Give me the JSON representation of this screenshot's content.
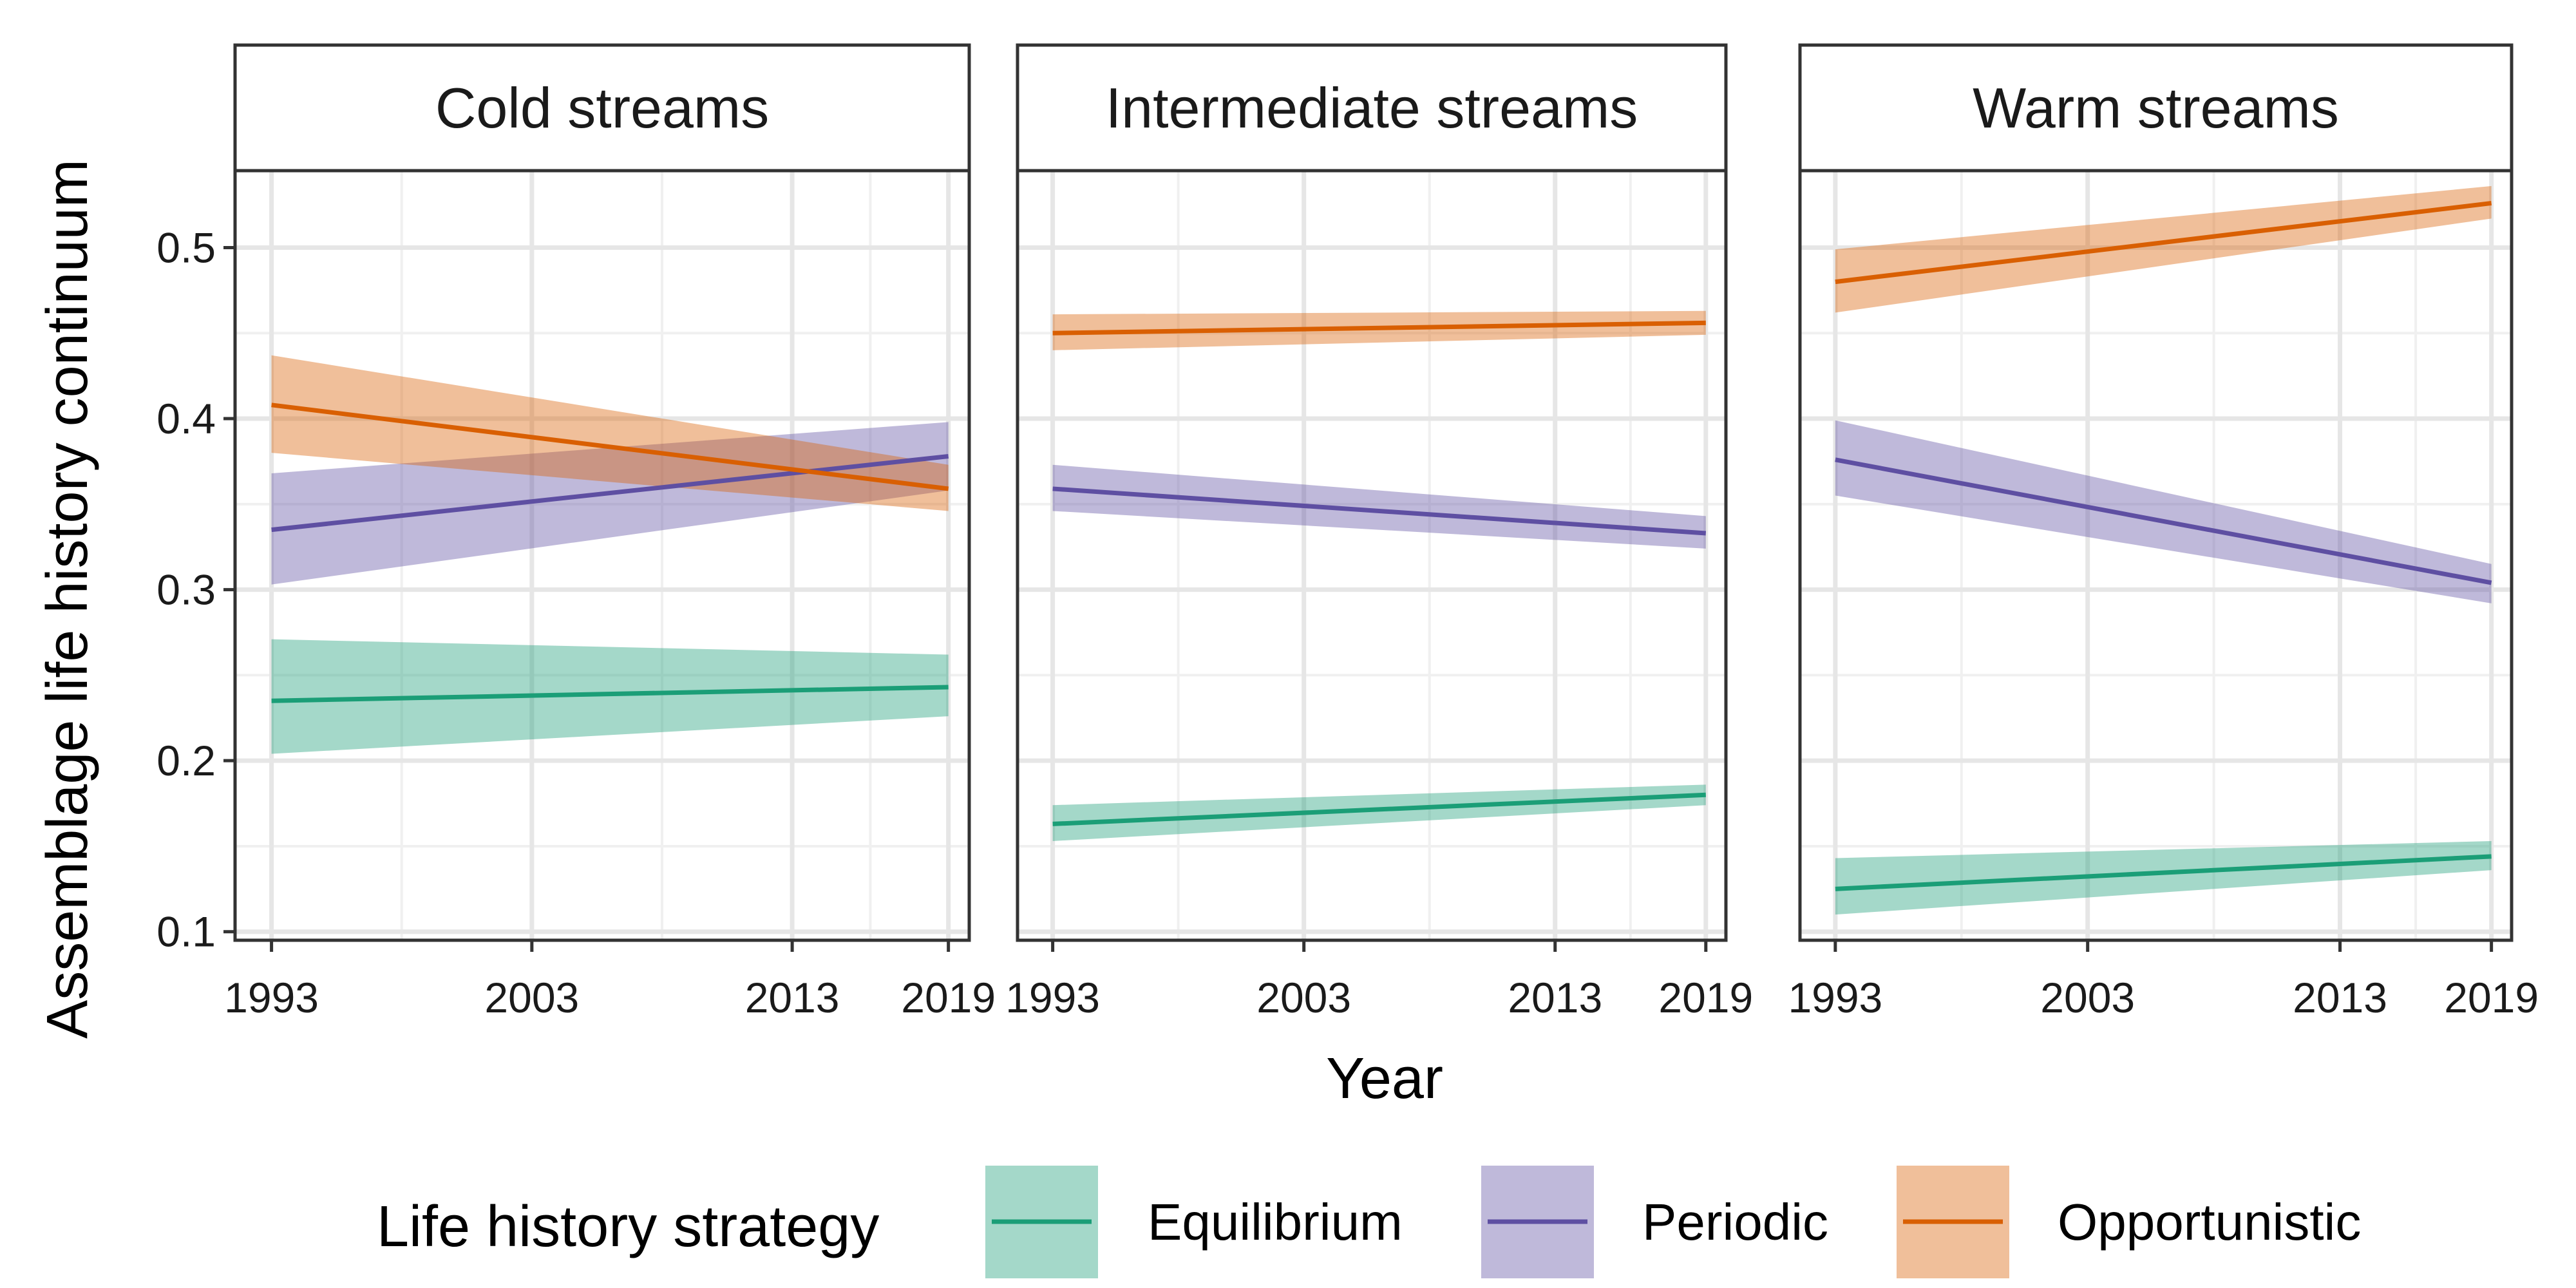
{
  "chart_data": {
    "type": "line",
    "xlabel": "Year",
    "ylabel": "Assemblage life history continuum",
    "xlim": [
      1991.6,
      2019.8
    ],
    "ylim": [
      0.095,
      0.545
    ],
    "x_ticks": [
      1993,
      2003,
      2013,
      2019
    ],
    "x_tick_labels": [
      "1993",
      "2003",
      "2013",
      "2019"
    ],
    "y_ticks": [
      0.1,
      0.2,
      0.3,
      0.4,
      0.5
    ],
    "y_tick_labels": [
      "0.1",
      "0.2",
      "0.3",
      "0.4",
      "0.5"
    ],
    "x_minor_gridlines": [
      1998,
      2008,
      2016
    ],
    "y_minor_gridlines": [
      0.15,
      0.25,
      0.35,
      0.45
    ],
    "grid": true,
    "legend": {
      "title": "Life history strategy",
      "placement": "bottom",
      "entries": [
        "Equilibrium",
        "Periodic",
        "Opportunistic"
      ]
    },
    "colors": {
      "Equilibrium": "#1b9e77",
      "Periodic": "#5e4fa2",
      "Opportunistic": "#d95f02"
    },
    "panels": [
      {
        "title": "Cold streams",
        "series": [
          {
            "name": "Equilibrium",
            "x": [
              1993,
              2019
            ],
            "y": [
              0.235,
              0.243
            ],
            "lower": [
              0.204,
              0.226
            ],
            "upper": [
              0.271,
              0.262
            ]
          },
          {
            "name": "Periodic",
            "x": [
              1993,
              2019
            ],
            "y": [
              0.335,
              0.378
            ],
            "lower": [
              0.303,
              0.358
            ],
            "upper": [
              0.368,
              0.398
            ]
          },
          {
            "name": "Opportunistic",
            "x": [
              1993,
              2019
            ],
            "y": [
              0.408,
              0.359
            ],
            "lower": [
              0.38,
              0.346
            ],
            "upper": [
              0.437,
              0.373
            ]
          }
        ]
      },
      {
        "title": "Intermediate streams",
        "series": [
          {
            "name": "Equilibrium",
            "x": [
              1993,
              2019
            ],
            "y": [
              0.163,
              0.18
            ],
            "lower": [
              0.153,
              0.174
            ],
            "upper": [
              0.174,
              0.186
            ]
          },
          {
            "name": "Periodic",
            "x": [
              1993,
              2019
            ],
            "y": [
              0.359,
              0.333
            ],
            "lower": [
              0.346,
              0.324
            ],
            "upper": [
              0.373,
              0.343
            ]
          },
          {
            "name": "Opportunistic",
            "x": [
              1993,
              2019
            ],
            "y": [
              0.45,
              0.456
            ],
            "lower": [
              0.44,
              0.449
            ],
            "upper": [
              0.461,
              0.463
            ]
          }
        ]
      },
      {
        "title": "Warm streams",
        "series": [
          {
            "name": "Equilibrium",
            "x": [
              1993,
              2019
            ],
            "y": [
              0.125,
              0.144
            ],
            "lower": [
              0.11,
              0.136
            ],
            "upper": [
              0.143,
              0.153
            ]
          },
          {
            "name": "Periodic",
            "x": [
              1993,
              2019
            ],
            "y": [
              0.376,
              0.304
            ],
            "lower": [
              0.355,
              0.292
            ],
            "upper": [
              0.399,
              0.315
            ]
          },
          {
            "name": "Opportunistic",
            "x": [
              1993,
              2019
            ],
            "y": [
              0.48,
              0.526
            ],
            "lower": [
              0.462,
              0.517
            ],
            "upper": [
              0.499,
              0.536
            ]
          }
        ]
      }
    ]
  }
}
